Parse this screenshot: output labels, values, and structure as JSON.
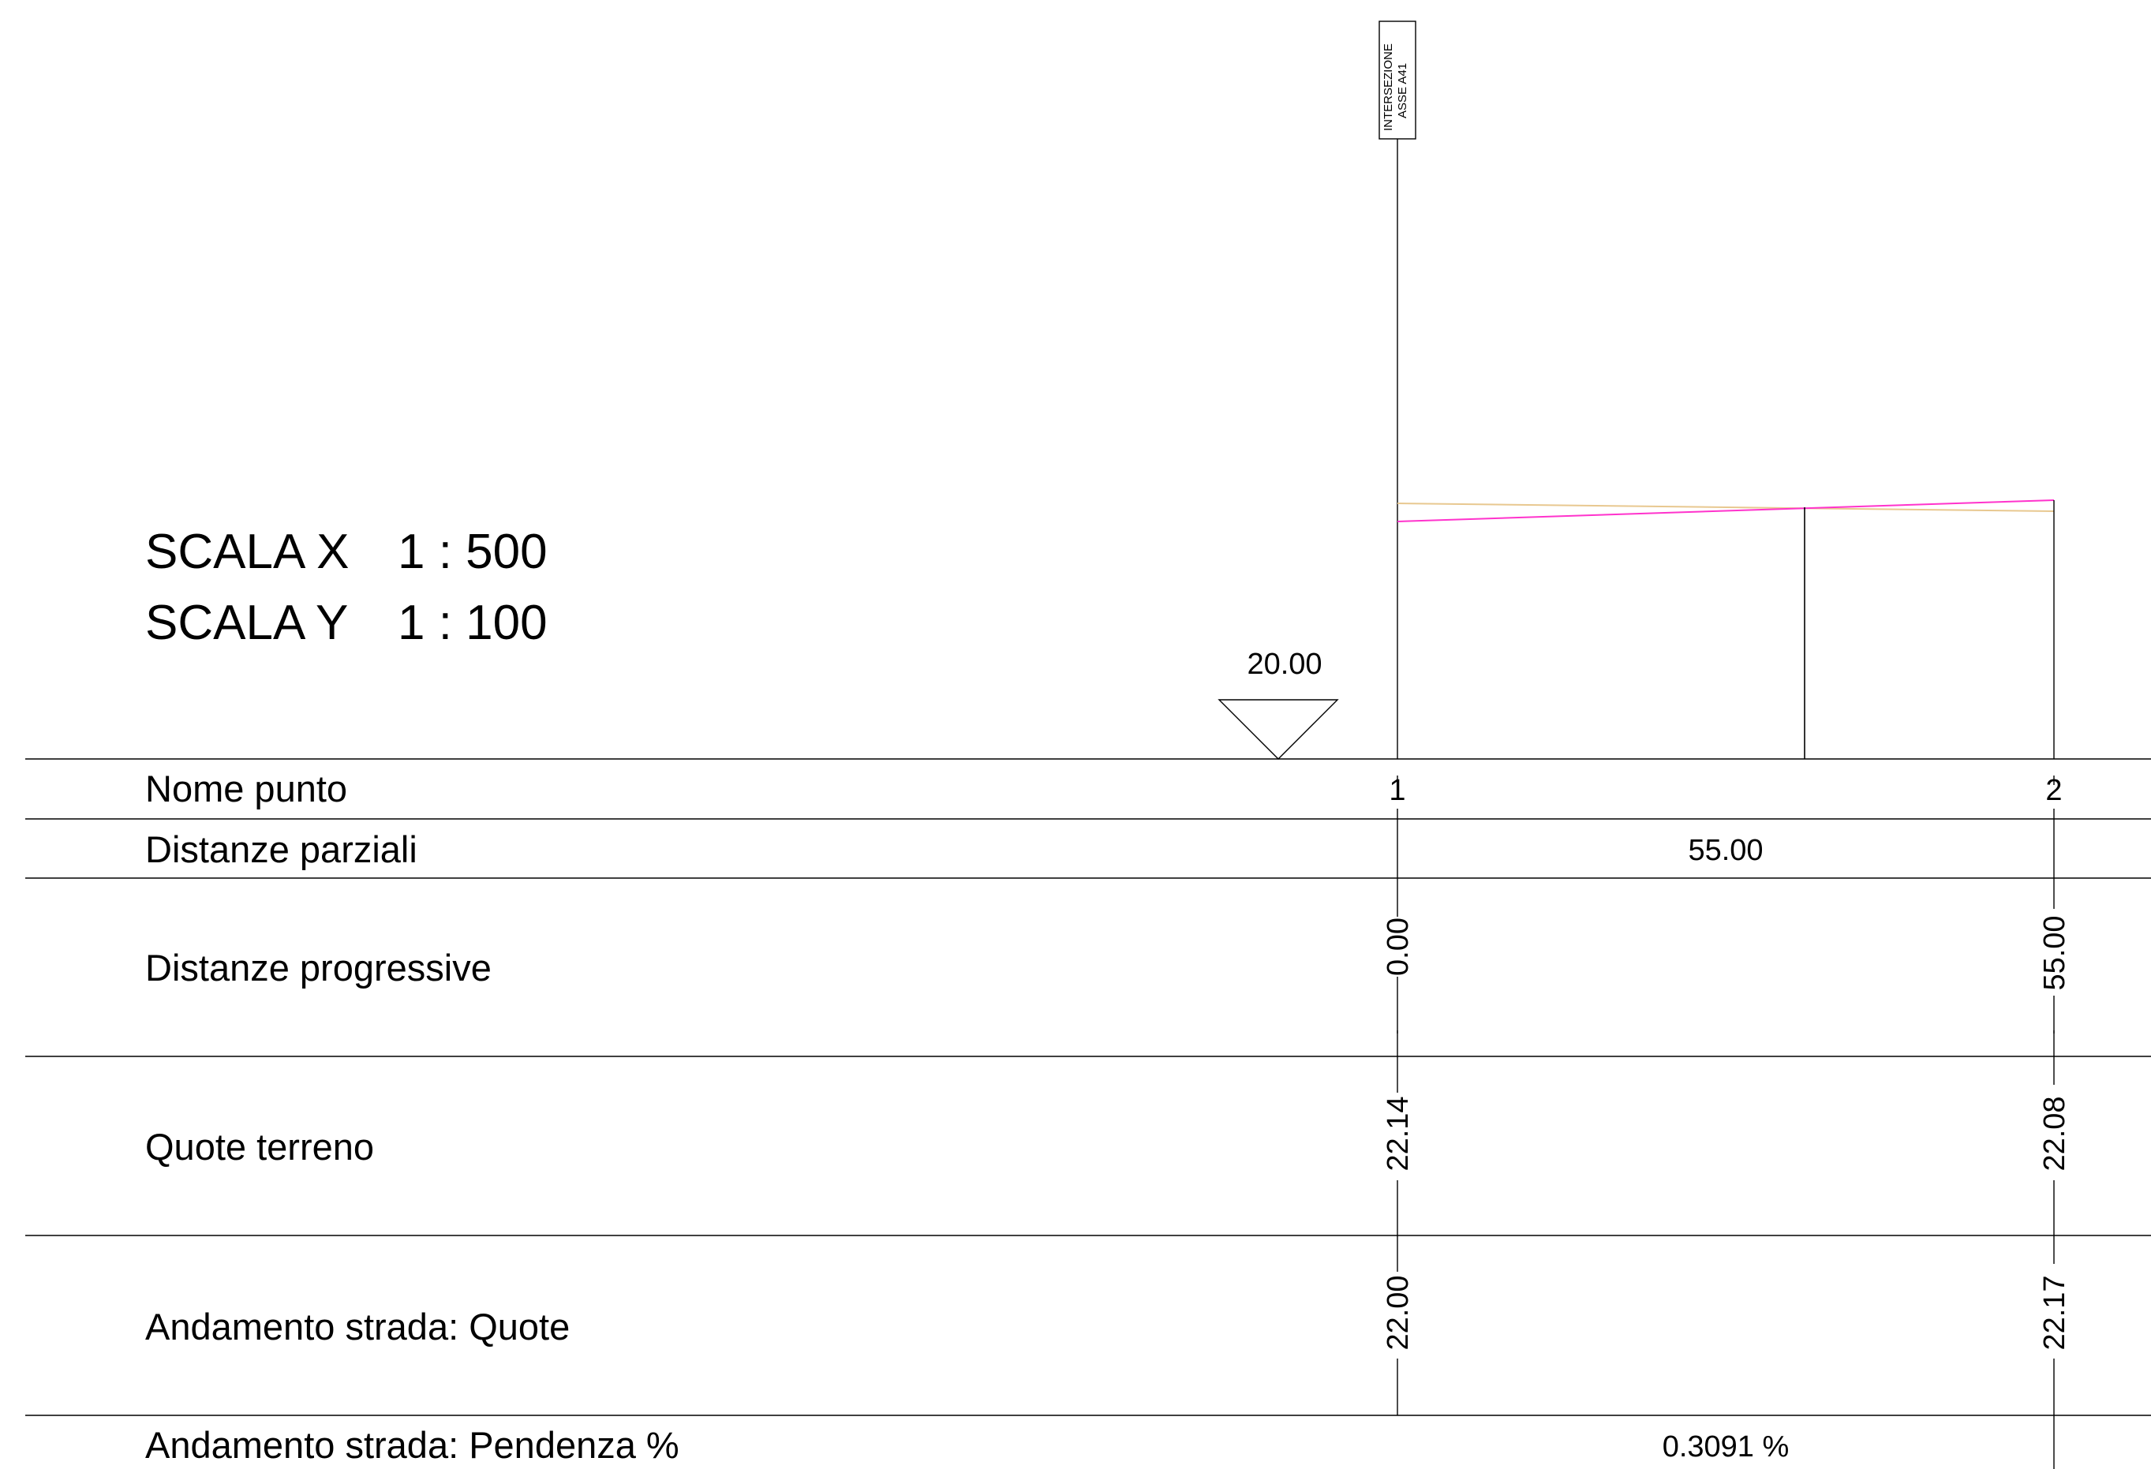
{
  "scale": {
    "x_label": "SCALA X",
    "x_value": "1 : 500",
    "y_label": "SCALA Y",
    "y_value": "1 : 100"
  },
  "datum": {
    "value": "20.00"
  },
  "marker": {
    "line1": "INTERSEZIONE",
    "line2": "ASSE  A41"
  },
  "rows": {
    "nome_punto": "Nome punto",
    "distanze_parziali": "Distanze parziali",
    "distanze_progressive": "Distanze progressive",
    "quote_terreno": "Quote terreno",
    "strada_quote": "Andamento strada: Quote",
    "strada_pendenza": "Andamento strada: Pendenza %"
  },
  "points": [
    {
      "name": "1",
      "progressive": "0.00",
      "quota_terreno": "22.14",
      "quota_strada": "22.00"
    },
    {
      "name": "2",
      "progressive": "55.00",
      "quota_terreno": "22.08",
      "quota_strada": "22.17"
    }
  ],
  "segment": {
    "distanza_parziale": "55.00",
    "pendenza": "0.3091 %"
  },
  "colors": {
    "road_profile": "#ff33cc",
    "terrain_profile": "#e8c890",
    "lines": "#000000"
  }
}
